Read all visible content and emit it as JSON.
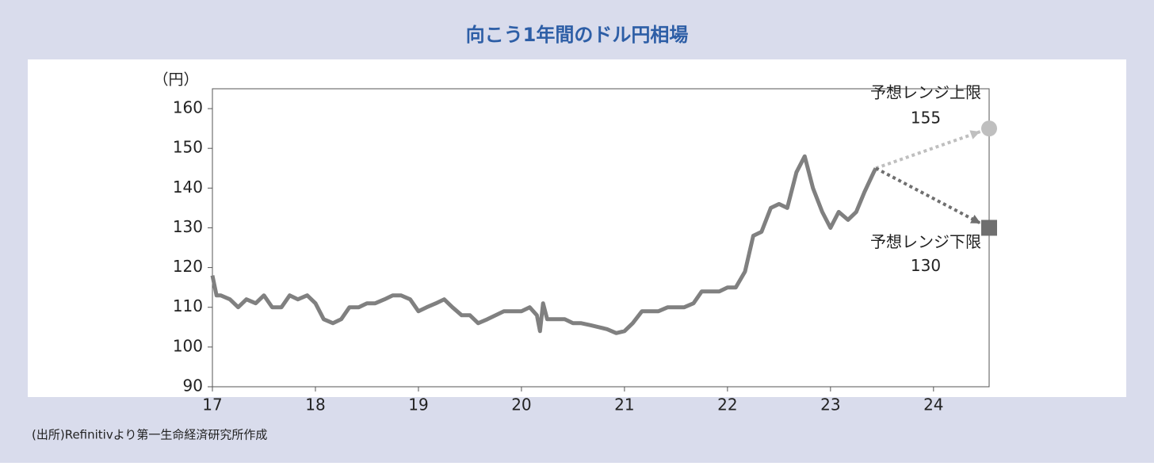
{
  "chart_data": {
    "type": "line",
    "title": "向こう1年間のドル円相場",
    "y_label": "（円）",
    "source": "(出所)Refinitivより第一生命経済研究所作成",
    "xlim": [
      17,
      24.54
    ],
    "xticks": [
      17,
      18,
      19,
      20,
      21,
      22,
      23,
      24
    ],
    "ylim": [
      90,
      165
    ],
    "yticks": [
      90,
      100,
      110,
      120,
      130,
      140,
      150,
      160
    ],
    "x": [
      17.0,
      17.04,
      17.08,
      17.17,
      17.25,
      17.33,
      17.42,
      17.5,
      17.58,
      17.67,
      17.75,
      17.83,
      17.92,
      18.0,
      18.08,
      18.17,
      18.25,
      18.33,
      18.42,
      18.5,
      18.58,
      18.67,
      18.75,
      18.83,
      18.92,
      19.0,
      19.08,
      19.17,
      19.25,
      19.33,
      19.42,
      19.5,
      19.58,
      19.67,
      19.75,
      19.83,
      19.92,
      20.0,
      20.08,
      20.15,
      20.18,
      20.21,
      20.25,
      20.33,
      20.42,
      20.5,
      20.58,
      20.67,
      20.75,
      20.83,
      20.92,
      21.0,
      21.08,
      21.17,
      21.25,
      21.33,
      21.42,
      21.5,
      21.58,
      21.67,
      21.75,
      21.83,
      21.92,
      22.0,
      22.08,
      22.17,
      22.25,
      22.33,
      22.42,
      22.5,
      22.58,
      22.67,
      22.75,
      22.83,
      22.92,
      23.0,
      23.08,
      23.17,
      23.25,
      23.33,
      23.42,
      23.44
    ],
    "series": [
      {
        "color": "#808080",
        "values": [
          118,
          113,
          113,
          112,
          110,
          112,
          111,
          113,
          110,
          110,
          113,
          112,
          113,
          111,
          107,
          106,
          107,
          110,
          110,
          111,
          111,
          112,
          113,
          113,
          112,
          109,
          110,
          111,
          112,
          110,
          108,
          108,
          106,
          107,
          108,
          109,
          109,
          109,
          110,
          108,
          104,
          111,
          107,
          107,
          107,
          106,
          106,
          105.5,
          105,
          104.5,
          103.5,
          104,
          106,
          109,
          109,
          109,
          110,
          110,
          110,
          111,
          114,
          114,
          114,
          115,
          115,
          119,
          128,
          129,
          135,
          136,
          135,
          144,
          148,
          140,
          134,
          130,
          134,
          132,
          134,
          139,
          144,
          145
        ]
      }
    ],
    "forecasts": [
      {
        "label": "予想レンジ上限",
        "x": 24.54,
        "value": 155,
        "color": "#bfbfbf",
        "marker": "circle"
      },
      {
        "label": "予想レンジ下限",
        "x": 24.54,
        "value": 130,
        "color": "#6f6f6f",
        "marker": "square"
      }
    ]
  }
}
